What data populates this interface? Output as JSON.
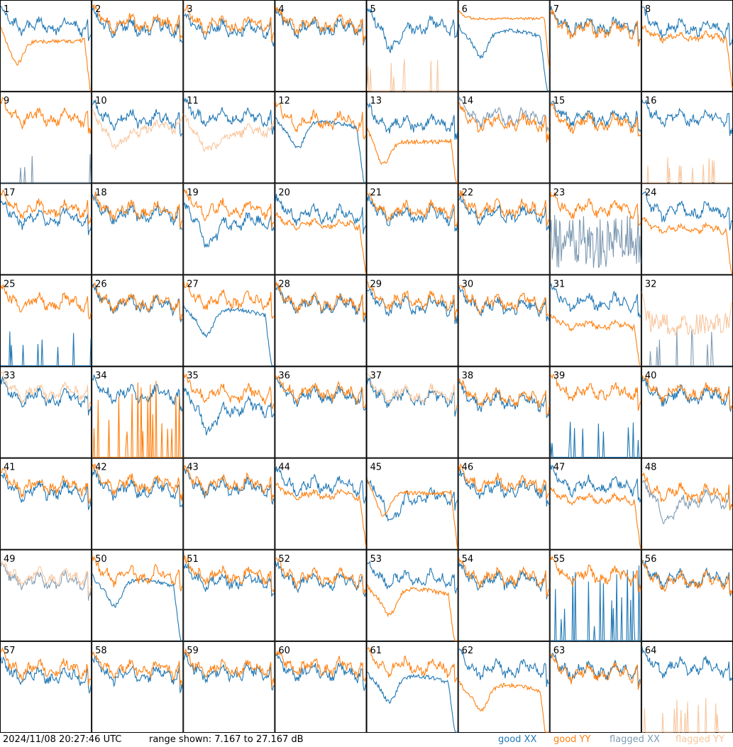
{
  "footer": {
    "timestamp": "2024/11/08 20:27:46 UTC",
    "range_text": "range shown: 7.167 to 27.167 dB"
  },
  "legend": {
    "good_xx": "good XX",
    "good_yy": "good YY",
    "flagged_xx": "flagged XX",
    "flagged_yy": "flagged YY"
  },
  "colors": {
    "good_xx": "#1f77b4",
    "good_yy": "#ff7f0e",
    "flagged_xx": "#7f9bb3",
    "flagged_yy": "#f8c79f",
    "grid": "#000000"
  },
  "chart_data": {
    "type": "line",
    "layout": "8x8 small multiples",
    "ylim_db": [
      7.167,
      27.167
    ],
    "series": [
      "good XX",
      "good YY",
      "flagged XX",
      "flagged YY"
    ],
    "panels": [
      {
        "id": "1",
        "xx": "wave",
        "yy": "dip_drop",
        "xx_lvl": 0.72,
        "yy_lvl": 0.55
      },
      {
        "id": "2",
        "xx": "wave",
        "yy": "wave",
        "xx_lvl": 0.7,
        "yy_lvl": 0.75
      },
      {
        "id": "3",
        "xx": "wave",
        "yy": "wave",
        "xx_lvl": 0.68,
        "yy_lvl": 0.74
      },
      {
        "id": "4",
        "xx": "wave",
        "yy": "wave",
        "xx_lvl": 0.7,
        "yy_lvl": 0.74
      },
      {
        "id": "5",
        "xx": "wave_dip",
        "yy": "spikes",
        "xx_lvl": 0.72,
        "yy_lvl": 0.05,
        "yy_flagged": true
      },
      {
        "id": "6",
        "xx": "hump_drop",
        "yy": "flat_high",
        "xx_lvl": 0.55,
        "yy_lvl": 0.8
      },
      {
        "id": "7",
        "xx": "wave",
        "yy": "wave",
        "xx_lvl": 0.72,
        "yy_lvl": 0.68
      },
      {
        "id": "8",
        "xx": "wave",
        "yy": "wave_drop",
        "xx_lvl": 0.7,
        "yy_lvl": 0.6
      },
      {
        "id": "9",
        "xx": "spikes",
        "yy": "wave",
        "xx_lvl": 0.05,
        "yy_lvl": 0.72,
        "xx_flagged": true
      },
      {
        "id": "10",
        "xx": "wave",
        "yy": "dip",
        "xx_lvl": 0.7,
        "yy_lvl": 0.5,
        "yy_flagged": true
      },
      {
        "id": "11",
        "xx": "wave",
        "yy": "dip",
        "xx_lvl": 0.72,
        "yy_lvl": 0.45,
        "yy_flagged": true
      },
      {
        "id": "12",
        "xx": "hump_drop",
        "yy": "wave",
        "xx_lvl": 0.55,
        "yy_lvl": 0.68
      },
      {
        "id": "13",
        "xx": "wave",
        "yy": "dip_drop",
        "xx_lvl": 0.65,
        "yy_lvl": 0.45
      },
      {
        "id": "14",
        "xx": "wave",
        "yy": "wave",
        "xx_lvl": 0.72,
        "yy_lvl": 0.66,
        "xx_flagged": true
      },
      {
        "id": "15",
        "xx": "wave",
        "yy": "wave",
        "xx_lvl": 0.72,
        "yy_lvl": 0.66
      },
      {
        "id": "16",
        "xx": "wave",
        "yy": "spikes",
        "xx_lvl": 0.72,
        "yy_lvl": 0.05,
        "yy_flagged": true
      },
      {
        "id": "17",
        "xx": "wave",
        "yy": "wave",
        "xx_lvl": 0.62,
        "yy_lvl": 0.72
      },
      {
        "id": "18",
        "xx": "wave",
        "yy": "wave",
        "xx_lvl": 0.66,
        "yy_lvl": 0.7
      },
      {
        "id": "19",
        "xx": "wave_dip",
        "yy": "wave",
        "xx_lvl": 0.58,
        "yy_lvl": 0.72
      },
      {
        "id": "20",
        "xx": "wave",
        "yy": "wave_drop",
        "xx_lvl": 0.66,
        "yy_lvl": 0.55
      },
      {
        "id": "21",
        "xx": "wave",
        "yy": "wave",
        "xx_lvl": 0.66,
        "yy_lvl": 0.7
      },
      {
        "id": "22",
        "xx": "wave",
        "yy": "wave",
        "xx_lvl": 0.66,
        "yy_lvl": 0.72
      },
      {
        "id": "23",
        "xx": "noise_low",
        "yy": "wave",
        "xx_lvl": 0.35,
        "yy_lvl": 0.72,
        "xx_flagged": true
      },
      {
        "id": "24",
        "xx": "wave",
        "yy": "wave_drop",
        "xx_lvl": 0.7,
        "yy_lvl": 0.5
      },
      {
        "id": "25",
        "xx": "spikes",
        "yy": "wave",
        "xx_lvl": 0.05,
        "yy_lvl": 0.7
      },
      {
        "id": "26",
        "xx": "wave",
        "yy": "wave",
        "xx_lvl": 0.68,
        "yy_lvl": 0.7
      },
      {
        "id": "27",
        "xx": "hump_drop",
        "yy": "wave",
        "xx_lvl": 0.5,
        "yy_lvl": 0.72
      },
      {
        "id": "28",
        "xx": "wave",
        "yy": "wave",
        "xx_lvl": 0.68,
        "yy_lvl": 0.7
      },
      {
        "id": "29",
        "xx": "wave",
        "yy": "wave",
        "xx_lvl": 0.66,
        "yy_lvl": 0.72
      },
      {
        "id": "30",
        "xx": "wave",
        "yy": "wave",
        "xx_lvl": 0.66,
        "yy_lvl": 0.7
      },
      {
        "id": "31",
        "xx": "wave",
        "yy": "wave_drop",
        "xx_lvl": 0.7,
        "yy_lvl": 0.45
      },
      {
        "id": "32",
        "xx": "spikes",
        "yy": "noisy",
        "xx_lvl": 0.05,
        "yy_lvl": 0.45,
        "xx_flagged": true,
        "yy_flagged": true
      },
      {
        "id": "33",
        "xx": "wave",
        "yy": "wave",
        "xx_lvl": 0.66,
        "yy_lvl": 0.72,
        "yy_flagged": true
      },
      {
        "id": "34",
        "xx": "wave",
        "yy": "spikes_tall",
        "xx_lvl": 0.7,
        "yy_lvl": 0.05
      },
      {
        "id": "35",
        "xx": "wave_dip",
        "yy": "wave",
        "xx_lvl": 0.55,
        "yy_lvl": 0.7
      },
      {
        "id": "36",
        "xx": "wave",
        "yy": "wave",
        "xx_lvl": 0.68,
        "yy_lvl": 0.72
      },
      {
        "id": "37",
        "xx": "wave",
        "yy": "wave",
        "xx_lvl": 0.66,
        "yy_lvl": 0.7,
        "yy_flagged": true
      },
      {
        "id": "38",
        "xx": "wave",
        "yy": "wave",
        "xx_lvl": 0.62,
        "yy_lvl": 0.66
      },
      {
        "id": "39",
        "xx": "spikes",
        "yy": "wave",
        "xx_lvl": 0.05,
        "yy_lvl": 0.72
      },
      {
        "id": "40",
        "xx": "wave",
        "yy": "wave",
        "xx_lvl": 0.68,
        "yy_lvl": 0.72
      },
      {
        "id": "41",
        "xx": "wave",
        "yy": "wave",
        "xx_lvl": 0.64,
        "yy_lvl": 0.7
      },
      {
        "id": "42",
        "xx": "wave",
        "yy": "wave",
        "xx_lvl": 0.66,
        "yy_lvl": 0.72
      },
      {
        "id": "43",
        "xx": "wave",
        "yy": "wave",
        "xx_lvl": 0.68,
        "yy_lvl": 0.72
      },
      {
        "id": "44",
        "xx": "wave",
        "yy": "wave_drop",
        "xx_lvl": 0.7,
        "yy_lvl": 0.6
      },
      {
        "id": "45",
        "xx": "wave_dip",
        "yy": "dip_drop",
        "xx_lvl": 0.58,
        "yy_lvl": 0.62
      },
      {
        "id": "46",
        "xx": "wave",
        "yy": "wave",
        "xx_lvl": 0.66,
        "yy_lvl": 0.72
      },
      {
        "id": "47",
        "xx": "wave",
        "yy": "wave_drop",
        "xx_lvl": 0.7,
        "yy_lvl": 0.55
      },
      {
        "id": "48",
        "xx": "wave_dip",
        "yy": "wave",
        "xx_lvl": 0.55,
        "yy_lvl": 0.62,
        "xx_flagged": true
      },
      {
        "id": "49",
        "xx": "wave",
        "yy": "wave",
        "xx_lvl": 0.66,
        "yy_lvl": 0.7,
        "xx_flagged": true,
        "yy_flagged": true
      },
      {
        "id": "50",
        "xx": "hump_drop",
        "yy": "wave",
        "xx_lvl": 0.55,
        "yy_lvl": 0.72
      },
      {
        "id": "51",
        "xx": "wave",
        "yy": "wave",
        "xx_lvl": 0.66,
        "yy_lvl": 0.72
      },
      {
        "id": "52",
        "xx": "wave",
        "yy": "wave",
        "xx_lvl": 0.66,
        "yy_lvl": 0.7
      },
      {
        "id": "53",
        "xx": "wave",
        "yy": "hump_drop",
        "xx_lvl": 0.68,
        "yy_lvl": 0.45
      },
      {
        "id": "54",
        "xx": "wave",
        "yy": "wave",
        "xx_lvl": 0.66,
        "yy_lvl": 0.7
      },
      {
        "id": "55",
        "xx": "spikes_tall",
        "yy": "wave",
        "xx_lvl": 0.05,
        "yy_lvl": 0.72
      },
      {
        "id": "56",
        "xx": "wave",
        "yy": "wave",
        "xx_lvl": 0.68,
        "yy_lvl": 0.66
      },
      {
        "id": "57",
        "xx": "wave",
        "yy": "wave",
        "xx_lvl": 0.62,
        "yy_lvl": 0.7
      },
      {
        "id": "58",
        "xx": "wave",
        "yy": "wave",
        "xx_lvl": 0.64,
        "yy_lvl": 0.7
      },
      {
        "id": "59",
        "xx": "wave",
        "yy": "wave",
        "xx_lvl": 0.66,
        "yy_lvl": 0.7
      },
      {
        "id": "60",
        "xx": "wave",
        "yy": "wave",
        "xx_lvl": 0.66,
        "yy_lvl": 0.72
      },
      {
        "id": "61",
        "xx": "hump_drop",
        "yy": "wave",
        "xx_lvl": 0.5,
        "yy_lvl": 0.72
      },
      {
        "id": "62",
        "xx": "wave",
        "yy": "hump_drop",
        "xx_lvl": 0.7,
        "yy_lvl": 0.4
      },
      {
        "id": "63",
        "xx": "wave",
        "yy": "wave",
        "xx_lvl": 0.68,
        "yy_lvl": 0.66
      },
      {
        "id": "64",
        "xx": "wave",
        "yy": "spikes",
        "xx_lvl": 0.72,
        "yy_lvl": 0.05,
        "yy_flagged": true
      }
    ]
  }
}
